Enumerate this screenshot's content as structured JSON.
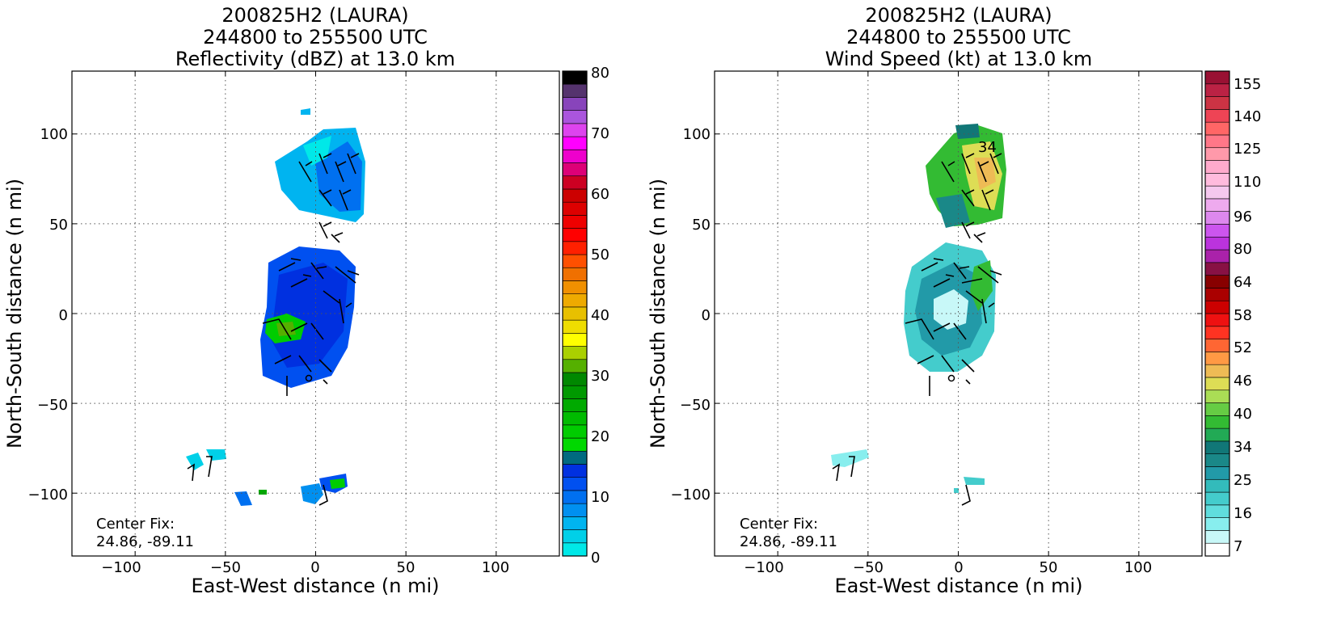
{
  "figure": {
    "panels": [
      {
        "title_line1": "200825H2 (LAURA)",
        "title_line2": "244800 to 255500 UTC",
        "title_line3": "Reflectivity (dBZ) at 13.0 km",
        "xlabel": "East-West distance (n mi)",
        "ylabel": "North-South distance (n mi)",
        "center_fix_label": "Center Fix:",
        "center_fix_value": "24.86, -89.11",
        "xticks": [
          "−100",
          "−50",
          "0",
          "50",
          "100"
        ],
        "yticks": [
          "100",
          "50",
          "0",
          "−50",
          "−100"
        ],
        "colorbar_ticks": [
          "80",
          "70",
          "60",
          "50",
          "40",
          "30",
          "20",
          "10",
          "0"
        ],
        "colorbar_colors": [
          "#00e8e8",
          "#00d0e8",
          "#00b4f0",
          "#0090f0",
          "#0070f0",
          "#0050f0",
          "#0030e0",
          "#006a80",
          "#00d800",
          "#00cc00",
          "#00bb00",
          "#00aa00",
          "#009900",
          "#008800",
          "#55b000",
          "#aad000",
          "#ffff00",
          "#eedd00",
          "#e8c000",
          "#eeaa00",
          "#f09000",
          "#f07000",
          "#ff5000",
          "#ff2000",
          "#ff0000",
          "#ee0000",
          "#dd0000",
          "#cc0000",
          "#cc0022",
          "#dd0077",
          "#ee00cc",
          "#ff00ff",
          "#dd44ee",
          "#aa55dd",
          "#8844bb",
          "#55336e",
          "#000000"
        ]
      },
      {
        "title_line1": "200825H2 (LAURA)",
        "title_line2": "244800 to 255500 UTC",
        "title_line3": "Wind Speed (kt) at 13.0 km",
        "xlabel": "East-West distance (n mi)",
        "ylabel": "North-South distance (n mi)",
        "center_fix_label": "Center Fix:",
        "center_fix_value": "24.86, -89.11",
        "xticks": [
          "−100",
          "−50",
          "0",
          "50",
          "100"
        ],
        "yticks": [
          "100",
          "50",
          "0",
          "−50",
          "−100"
        ],
        "colorbar_ticks": [
          "155",
          "140",
          "125",
          "110",
          "96",
          "80",
          "64",
          "58",
          "52",
          "46",
          "40",
          "34",
          "25",
          "16",
          "7"
        ],
        "colorbar_colors": [
          "#ffffff",
          "#c8f8f8",
          "#88eeee",
          "#60dddd",
          "#44cccc",
          "#33bbbb",
          "#229aa8",
          "#1a8888",
          "#117777",
          "#22aa55",
          "#33bb33",
          "#66cc44",
          "#aadd55",
          "#dddd55",
          "#eebb55",
          "#ff9944",
          "#ff6633",
          "#ff3322",
          "#ee1111",
          "#cc0000",
          "#aa0000",
          "#880000",
          "#881144",
          "#aa22aa",
          "#bb33dd",
          "#cc55ee",
          "#dd88ee",
          "#eeaaee",
          "#f5c8ee",
          "#ffbbdd",
          "#ffaacc",
          "#ff99aa",
          "#ff7788",
          "#ff6666",
          "#ee4455",
          "#cc3344",
          "#bb2244",
          "#991133"
        ]
      }
    ]
  },
  "chart_data": [
    {
      "type": "heatmap",
      "title": "200825H2 (LAURA)\n244800 to 255500 UTC\nReflectivity (dBZ) at 13.0 km",
      "xlabel": "East-West distance (n mi)",
      "ylabel": "North-South distance (n mi)",
      "xlim": [
        -135,
        135
      ],
      "ylim": [
        -135,
        135
      ],
      "xticks": [
        -100,
        -50,
        0,
        50,
        100
      ],
      "yticks": [
        -100,
        -50,
        0,
        50,
        100
      ],
      "grid": true,
      "colorbar": {
        "label": "dBZ",
        "range": [
          0,
          80
        ],
        "ticks": [
          0,
          10,
          20,
          30,
          40,
          50,
          60,
          70,
          80
        ]
      },
      "center_fix": [
        24.86,
        -89.11
      ],
      "regions": [
        {
          "name": "north band",
          "x": [
            -20,
            28
          ],
          "y": [
            48,
            102
          ],
          "value_range_dbz": [
            2,
            14
          ]
        },
        {
          "name": "core",
          "x": [
            -30,
            22
          ],
          "y": [
            -40,
            38
          ],
          "value_range_dbz": [
            10,
            16
          ]
        },
        {
          "name": "core embedded cell",
          "x": [
            -28,
            -8
          ],
          "y": [
            -15,
            -2
          ],
          "value_range_dbz": [
            20,
            26
          ]
        },
        {
          "name": "south echoes",
          "x": [
            -70,
            20
          ],
          "y": [
            -107,
            -76
          ],
          "value_range_dbz": [
            2,
            24
          ]
        }
      ]
    },
    {
      "type": "heatmap",
      "title": "200825H2 (LAURA)\n244800 to 255500 UTC\nWind Speed (kt) at 13.0 km",
      "xlabel": "East-West distance (n mi)",
      "ylabel": "North-South distance (n mi)",
      "xlim": [
        -135,
        135
      ],
      "ylim": [
        -135,
        135
      ],
      "xticks": [
        -100,
        -50,
        0,
        50,
        100
      ],
      "yticks": [
        -100,
        -50,
        0,
        50,
        100
      ],
      "grid": true,
      "colorbar": {
        "label": "kt",
        "range": [
          7,
          160
        ],
        "ticks": [
          7,
          16,
          25,
          34,
          40,
          46,
          52,
          58,
          64,
          80,
          96,
          110,
          125,
          140,
          155
        ]
      },
      "center_fix": [
        24.86,
        -89.11
      ],
      "contour_labels": [
        34
      ],
      "regions": [
        {
          "name": "north band",
          "x": [
            -20,
            22
          ],
          "y": [
            48,
            102
          ],
          "value_range_kt": [
            25,
            50
          ]
        },
        {
          "name": "core",
          "x": [
            -30,
            20
          ],
          "y": [
            -35,
            35
          ],
          "value_range_kt": [
            10,
            35
          ]
        },
        {
          "name": "south echoes",
          "x": [
            -70,
            15
          ],
          "y": [
            -102,
            -76
          ],
          "value_range_kt": [
            10,
            25
          ]
        }
      ]
    }
  ]
}
